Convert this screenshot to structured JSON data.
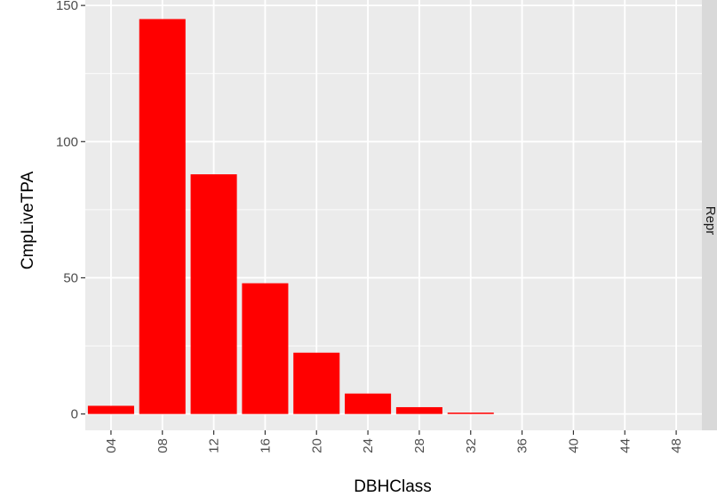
{
  "chart_data": {
    "type": "bar",
    "categories": [
      "04",
      "08",
      "12",
      "16",
      "20",
      "24",
      "28",
      "32",
      "36",
      "40",
      "44",
      "48"
    ],
    "values": [
      3,
      145,
      88,
      48,
      22.5,
      7.5,
      2.5,
      0.5,
      0,
      0,
      0,
      0
    ],
    "xlabel": "DBHClass",
    "ylabel": "CmpLiveTPA",
    "ylim": [
      -6,
      152
    ],
    "yticks": [
      0,
      50,
      100,
      150
    ],
    "facet_label": "Repr",
    "bar_color": "#ff0000",
    "panel_background": "#ebebeb",
    "strip_background": "#d9d9d9",
    "grid": true,
    "x_tick_rotation": "vertical"
  }
}
